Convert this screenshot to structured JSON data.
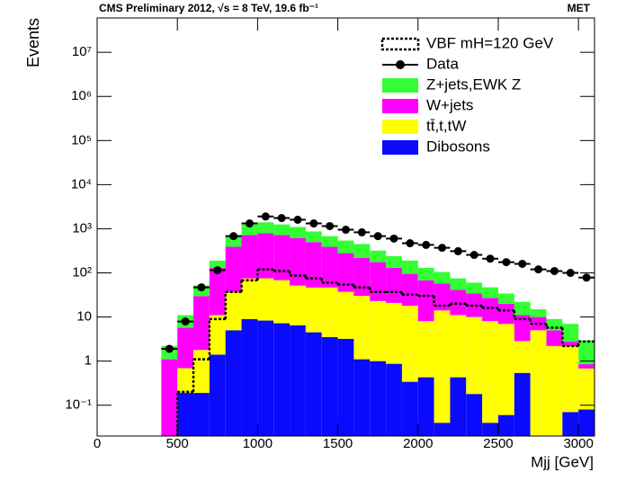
{
  "chart_data": {
    "type": "histogram",
    "title": "CMS Preliminary 2012,   √s = 8 TeV, 19.6 fb⁻¹",
    "channel": "MET",
    "x_label": "Mjj [GeV]",
    "y_label": "Events",
    "log_y": true,
    "stacked": true,
    "xlim": [
      0,
      3100
    ],
    "ylim": [
      0.02,
      60000000
    ],
    "xticks": [
      0,
      500,
      1000,
      1500,
      2000,
      2500,
      3000
    ],
    "yticks": [
      {
        "value": 0.1,
        "label": "10⁻¹"
      },
      1,
      10,
      {
        "value": 100,
        "label": "10²"
      },
      {
        "value": 1000,
        "label": "10³"
      },
      {
        "value": 10000,
        "label": "10⁴"
      },
      {
        "value": 100000,
        "label": "10⁵"
      },
      {
        "value": 1000000,
        "label": "10⁶"
      },
      {
        "value": 10000000,
        "label": "10⁷"
      }
    ],
    "bins": [
      400,
      500,
      600,
      700,
      800,
      900,
      1000,
      1100,
      1200,
      1300,
      1400,
      1500,
      1600,
      1700,
      1800,
      1900,
      2000,
      2100,
      2200,
      2300,
      2400,
      2500,
      2600,
      2700,
      2800,
      2900,
      3000,
      3100
    ],
    "series": [
      {
        "name": "VBF mH=120 GeV",
        "style": "step",
        "color": "#000000",
        "values": [
          null,
          0.2,
          1.1,
          9,
          37,
          68,
          120,
          110,
          87,
          75,
          60,
          54,
          47,
          37,
          37,
          32,
          30,
          18,
          20,
          18,
          16,
          14,
          9,
          7,
          5.7,
          2.2,
          2.8
        ]
      },
      {
        "name": "Data",
        "style": "points",
        "color": "#000000",
        "values": [
          1.9,
          7.9,
          47,
          115,
          680,
          1320,
          1900,
          1750,
          1600,
          1320,
          1150,
          950,
          830,
          680,
          600,
          470,
          430,
          370,
          310,
          255,
          210,
          175,
          160,
          120,
          110,
          100,
          78
        ]
      },
      {
        "name": "Z+jets,EWK Z",
        "style": "fill",
        "color": "#33ff33",
        "values": [
          1.1,
          5.3,
          22,
          60,
          290,
          530,
          610,
          530,
          480,
          370,
          290,
          260,
          230,
          145,
          110,
          95,
          62,
          48,
          34,
          26,
          20,
          14,
          11,
          5,
          4,
          4.2,
          2.1
        ]
      },
      {
        "name": "W+jets",
        "style": "fill",
        "color": "#ff00ff",
        "values": [
          1.1,
          5,
          28,
          119,
          353,
          645,
          715,
          652,
          568,
          453,
          343,
          243,
          190,
          152,
          109,
          77,
          60,
          43,
          30,
          24,
          19,
          13,
          8.2,
          5,
          2.8,
          0.6,
          0.17
        ]
      },
      {
        "name": "tt̄,t,tW",
        "style": "fill",
        "color": "#ffff00",
        "values": [
          null,
          0.5,
          1.6,
          9.6,
          32,
          66,
          67,
          61,
          45,
          42,
          43,
          34,
          29,
          22,
          20,
          17.7,
          7.6,
          14,
          10.6,
          9.8,
          8,
          6.9,
          2.3,
          5,
          2.2,
          2.1,
          0.6
        ]
      },
      {
        "name": "Dibosons",
        "style": "fill",
        "color": "#0a0aff",
        "values": [
          null,
          0.19,
          0.19,
          1.4,
          5,
          9,
          8.3,
          7.2,
          6.5,
          4.5,
          3.5,
          3.2,
          1.1,
          1,
          0.87,
          0.34,
          0.43,
          0.04,
          0.43,
          0.18,
          0.04,
          0.06,
          0.54,
          null,
          null,
          0.07,
          0.08
        ]
      }
    ]
  }
}
